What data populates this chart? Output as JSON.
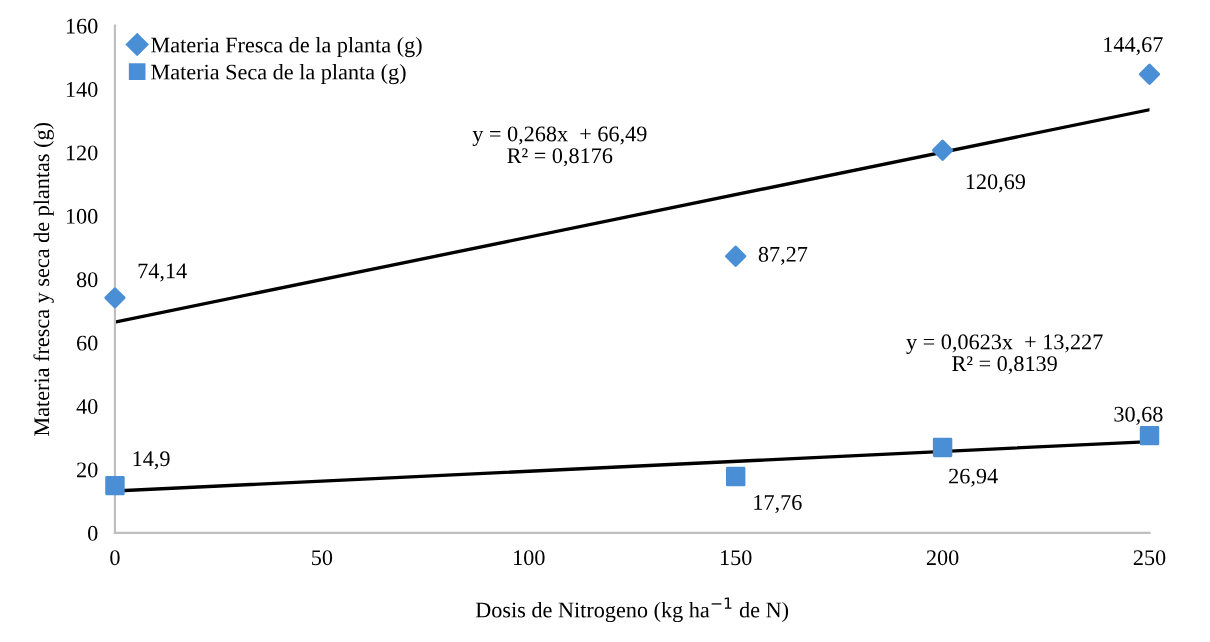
{
  "chart_data": {
    "type": "scatter",
    "xlabel": "Dosis de Nitrogeno (kg ha$^{−1}$ de N)",
    "ylabel": "Materia fresca y seca de plantas (g)",
    "xlim": [
      0,
      250
    ],
    "xticks": [
      0,
      50,
      100,
      150,
      200,
      250
    ],
    "ylim": [
      0,
      160
    ],
    "yticks": [
      0,
      20,
      40,
      60,
      80,
      100,
      120,
      140,
      160
    ],
    "grid": false,
    "legend": "top left",
    "series": [
      {
        "name": "Materia Fresca de la planta (g)",
        "marker": "diamond",
        "color": "#4a8fd6",
        "x": [
          0,
          150,
          200,
          250
        ],
        "values": [
          74.14,
          87.27,
          120.69,
          144.67
        ],
        "value_labels": [
          "74,14",
          "87,27",
          "120,69",
          "144,67"
        ]
      },
      {
        "name": "Materia Seca de la planta (g)",
        "marker": "square",
        "color": "#4a8fd6",
        "x": [
          0,
          150,
          200,
          250
        ],
        "values": [
          14.9,
          17.76,
          26.94,
          30.68
        ],
        "value_labels": [
          "14,9",
          "17,76",
          "26,94",
          "30,68"
        ]
      },
      {
        "type": "line",
        "color": "#000000",
        "x": [
          0,
          250
        ],
        "values": [
          66.5,
          133.5
        ]
      },
      {
        "type": "line",
        "color": "#000000",
        "x": [
          0,
          250
        ],
        "values": [
          13.2,
          28.8
        ]
      }
    ],
    "annotations": [
      "y = 0,268x  + 66,49\nR² = 0,8176",
      "y = 0,0623x  + 13,227\nR² = 0,8139"
    ]
  }
}
